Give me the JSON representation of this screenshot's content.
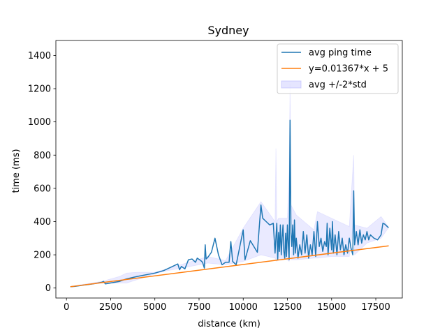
{
  "chart_data": {
    "type": "line",
    "title": "Sydney",
    "xlabel": "distance (km)",
    "ylabel": "time (ms)",
    "xlim": [
      -600,
      19000
    ],
    "ylim": [
      -60,
      1490
    ],
    "xticks": [
      0,
      2500,
      5000,
      7500,
      10000,
      12500,
      15000,
      17500
    ],
    "yticks": [
      0,
      200,
      400,
      600,
      800,
      1000,
      1200,
      1400
    ],
    "grid": false,
    "legend_position": "top-right",
    "legend": [
      {
        "label": "avg ping time",
        "kind": "line",
        "color": "#1f77b4"
      },
      {
        "label": "y=0.01367*x + 5",
        "kind": "line",
        "color": "#ff7f0e"
      },
      {
        "label": "avg +/-2*std",
        "kind": "patch",
        "color": "#aaaaff"
      }
    ],
    "series": [
      {
        "name": "avg ping time",
        "color": "#1f77b4",
        "points": [
          [
            250,
            8
          ],
          [
            500,
            10
          ],
          [
            1000,
            18
          ],
          [
            1500,
            25
          ],
          [
            2000,
            35
          ],
          [
            2100,
            40
          ],
          [
            2200,
            25
          ],
          [
            3000,
            40
          ],
          [
            3400,
            55
          ],
          [
            4000,
            70
          ],
          [
            5000,
            90
          ],
          [
            5500,
            105
          ],
          [
            6300,
            145
          ],
          [
            6400,
            110
          ],
          [
            6500,
            130
          ],
          [
            6700,
            115
          ],
          [
            6900,
            170
          ],
          [
            7100,
            175
          ],
          [
            7300,
            155
          ],
          [
            7400,
            180
          ],
          [
            7600,
            165
          ],
          [
            7700,
            155
          ],
          [
            7800,
            120
          ],
          [
            7850,
            260
          ],
          [
            7900,
            175
          ],
          [
            8000,
            185
          ],
          [
            8200,
            215
          ],
          [
            8400,
            300
          ],
          [
            8600,
            200
          ],
          [
            8800,
            140
          ],
          [
            9000,
            155
          ],
          [
            9200,
            155
          ],
          [
            9300,
            280
          ],
          [
            9400,
            160
          ],
          [
            9600,
            140
          ],
          [
            10000,
            350
          ],
          [
            10100,
            170
          ],
          [
            10400,
            285
          ],
          [
            10800,
            215
          ],
          [
            11000,
            500
          ],
          [
            11100,
            420
          ],
          [
            11300,
            400
          ],
          [
            11500,
            380
          ],
          [
            11700,
            390
          ],
          [
            11800,
            210
          ],
          [
            11900,
            390
          ],
          [
            11950,
            170
          ],
          [
            12000,
            335
          ],
          [
            12050,
            220
          ],
          [
            12100,
            380
          ],
          [
            12150,
            200
          ],
          [
            12200,
            300
          ],
          [
            12250,
            380
          ],
          [
            12300,
            220
          ],
          [
            12350,
            180
          ],
          [
            12400,
            330
          ],
          [
            12450,
            190
          ],
          [
            12500,
            380
          ],
          [
            12550,
            260
          ],
          [
            12600,
            170
          ],
          [
            12650,
            1010
          ],
          [
            12700,
            330
          ],
          [
            12750,
            250
          ],
          [
            12800,
            380
          ],
          [
            12850,
            200
          ],
          [
            12900,
            410
          ],
          [
            12950,
            210
          ],
          [
            13000,
            300
          ],
          [
            13100,
            180
          ],
          [
            13200,
            260
          ],
          [
            13300,
            200
          ],
          [
            13400,
            340
          ],
          [
            13500,
            210
          ],
          [
            13600,
            320
          ],
          [
            13700,
            180
          ],
          [
            13800,
            260
          ],
          [
            13900,
            200
          ],
          [
            14000,
            340
          ],
          [
            14100,
            190
          ],
          [
            14200,
            400
          ],
          [
            14300,
            250
          ],
          [
            14400,
            300
          ],
          [
            14500,
            220
          ],
          [
            14600,
            280
          ],
          [
            14700,
            250
          ],
          [
            14750,
            390
          ],
          [
            14800,
            200
          ],
          [
            14900,
            360
          ],
          [
            15000,
            230
          ],
          [
            15050,
            400
          ],
          [
            15100,
            210
          ],
          [
            15200,
            320
          ],
          [
            15300,
            200
          ],
          [
            15400,
            340
          ],
          [
            15500,
            230
          ],
          [
            15600,
            300
          ],
          [
            15700,
            200
          ],
          [
            15800,
            260
          ],
          [
            15900,
            210
          ],
          [
            16000,
            300
          ],
          [
            16100,
            240
          ],
          [
            16200,
            200
          ],
          [
            16250,
            585
          ],
          [
            16300,
            260
          ],
          [
            16400,
            340
          ],
          [
            16500,
            260
          ],
          [
            16600,
            350
          ],
          [
            16700,
            270
          ],
          [
            16800,
            320
          ],
          [
            16900,
            290
          ],
          [
            17000,
            340
          ],
          [
            17100,
            290
          ],
          [
            17200,
            320
          ],
          [
            17400,
            300
          ],
          [
            17600,
            290
          ],
          [
            17800,
            320
          ],
          [
            17900,
            390
          ],
          [
            18000,
            385
          ],
          [
            18200,
            365
          ]
        ]
      },
      {
        "name": "y=0.01367*x + 5",
        "color": "#ff7f0e",
        "points": [
          [
            250,
            8.4
          ],
          [
            18200,
            253.8
          ]
        ]
      }
    ],
    "band": {
      "name": "avg +/-2*std",
      "color": "#aaaaff",
      "opacity": 0.25,
      "upper": [
        [
          250,
          10
        ],
        [
          2000,
          40
        ],
        [
          3000,
          70
        ],
        [
          3400,
          90
        ],
        [
          4000,
          95
        ],
        [
          5000,
          95
        ],
        [
          5500,
          110
        ],
        [
          8000,
          190
        ],
        [
          9000,
          165
        ],
        [
          10000,
          360
        ],
        [
          11000,
          520
        ],
        [
          11800,
          400
        ],
        [
          11850,
          840
        ],
        [
          11900,
          400
        ],
        [
          12000,
          420
        ],
        [
          12500,
          420
        ],
        [
          12600,
          700
        ],
        [
          12650,
          1230
        ],
        [
          12700,
          500
        ],
        [
          13000,
          440
        ],
        [
          14000,
          350
        ],
        [
          14200,
          460
        ],
        [
          15000,
          420
        ],
        [
          16000,
          370
        ],
        [
          16250,
          800
        ],
        [
          16300,
          380
        ],
        [
          17000,
          360
        ],
        [
          17800,
          430
        ],
        [
          18200,
          370
        ]
      ],
      "lower": [
        [
          250,
          6
        ],
        [
          2000,
          30
        ],
        [
          3000,
          30
        ],
        [
          3400,
          30
        ],
        [
          4000,
          50
        ],
        [
          5000,
          85
        ],
        [
          5500,
          100
        ],
        [
          8000,
          150
        ],
        [
          9000,
          140
        ],
        [
          10000,
          160
        ],
        [
          11000,
          200
        ],
        [
          11800,
          180
        ],
        [
          11850,
          170
        ],
        [
          11900,
          160
        ],
        [
          12000,
          180
        ],
        [
          12500,
          170
        ],
        [
          12600,
          160
        ],
        [
          12650,
          760
        ],
        [
          12700,
          170
        ],
        [
          13000,
          170
        ],
        [
          14000,
          180
        ],
        [
          14200,
          180
        ],
        [
          15000,
          190
        ],
        [
          16000,
          190
        ],
        [
          16250,
          400
        ],
        [
          16300,
          200
        ],
        [
          17000,
          270
        ],
        [
          17800,
          300
        ],
        [
          18200,
          360
        ]
      ]
    }
  }
}
